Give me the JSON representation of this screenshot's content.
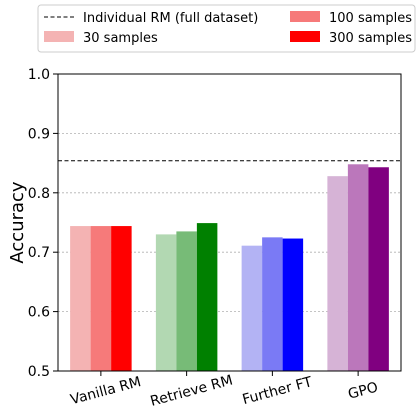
{
  "chart_data": {
    "type": "bar",
    "categories": [
      "Vanilla RM",
      "Retrieve RM",
      "Further FT",
      "GPO"
    ],
    "series": [
      {
        "name": "30 samples",
        "values": [
          0.744,
          0.73,
          0.711,
          0.828
        ]
      },
      {
        "name": "100 samples",
        "values": [
          0.744,
          0.735,
          0.725,
          0.848
        ]
      },
      {
        "name": "300 samples",
        "values": [
          0.744,
          0.749,
          0.723,
          0.843
        ]
      }
    ],
    "reference_line": {
      "name": "Individual RM (full dataset)",
      "value": 0.854,
      "style": "dashed"
    },
    "group_colors": [
      [
        "#f4b3b3",
        "#f67a7a",
        "#ff0000"
      ],
      [
        "#b2d8b2",
        "#77bb77",
        "#008000"
      ],
      [
        "#b3b3f4",
        "#7a7af5",
        "#0000ff"
      ],
      [
        "#d6b3d6",
        "#bb77bb",
        "#800080"
      ]
    ],
    "legend_colors": [
      "#f4b3b3",
      "#f67a7a",
      "#ff0000"
    ],
    "ylabel": "Accuracy",
    "xlabel": "",
    "ylim": [
      0.5,
      1.0
    ],
    "yticks": [
      "0.5",
      "0.6",
      "0.7",
      "0.8",
      "0.9",
      "1.0"
    ],
    "grid": "y-dotted",
    "legend_position": "top",
    "legend_columns": 2
  }
}
